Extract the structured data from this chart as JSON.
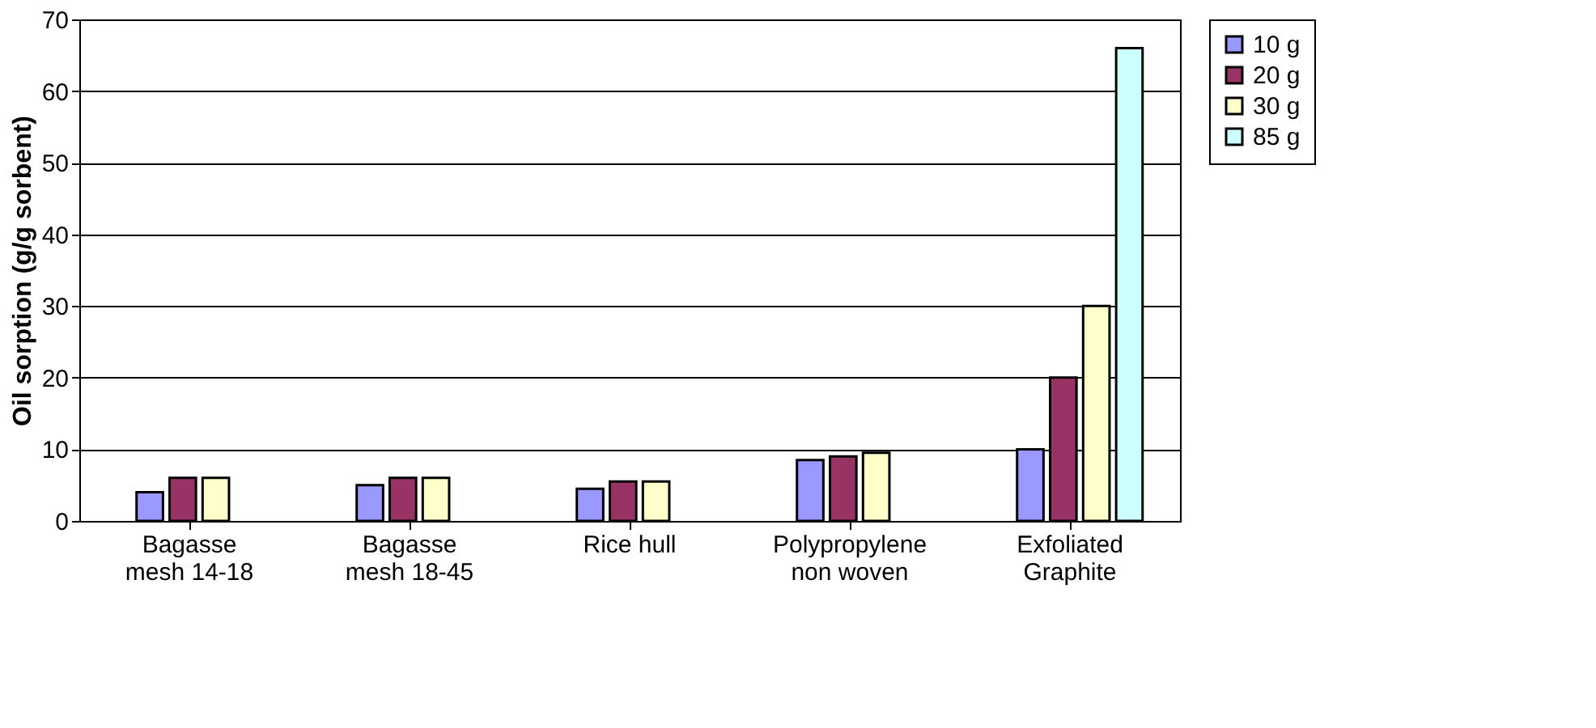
{
  "chart_data": {
    "type": "bar",
    "ylabel": "Oil sorption (g/g sorbent)",
    "categories": [
      "Bagasse\nmesh 14-18",
      "Bagasse\nmesh 18-45",
      "Rice hull",
      "Polypropylene\nnon woven",
      "Exfoliated\nGraphite"
    ],
    "series": [
      {
        "name": "10 g",
        "color": "#9999ff",
        "values": [
          4,
          5,
          4.5,
          8.5,
          10
        ]
      },
      {
        "name": "20 g",
        "color": "#993366",
        "values": [
          6,
          6,
          5.5,
          9,
          20
        ]
      },
      {
        "name": "30 g",
        "color": "#ffffcc",
        "values": [
          6,
          6,
          5.5,
          9.5,
          30
        ]
      },
      {
        "name": "85 g",
        "color": "#ccffff",
        "values": [
          null,
          null,
          null,
          null,
          66
        ]
      }
    ],
    "ylim": [
      0,
      70
    ],
    "yticks": [
      0,
      10,
      20,
      30,
      40,
      50,
      60,
      70
    ],
    "grid": "y",
    "legend": "right"
  }
}
